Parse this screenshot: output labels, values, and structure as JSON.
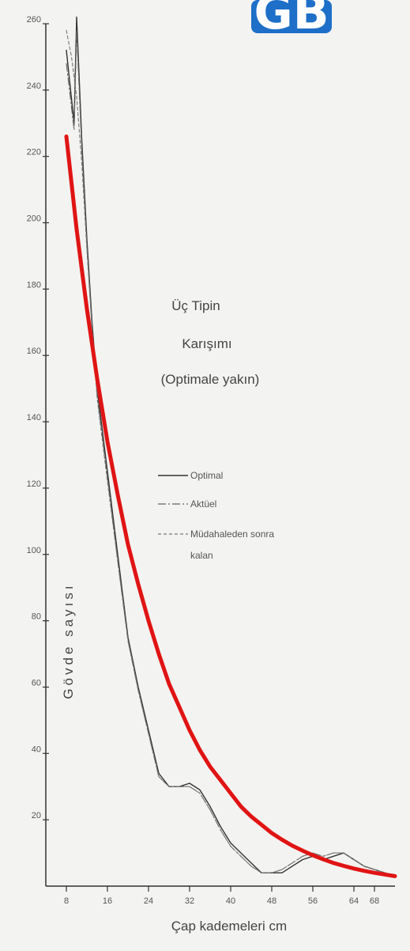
{
  "logo": {
    "text": "GB",
    "color": "#1d6fc7"
  },
  "chart_data": {
    "type": "line",
    "title_lines": [
      "Üç Tipin",
      "Karışımı",
      "(Optimale yakın)"
    ],
    "xlabel": "Çap kademeleri cm",
    "ylabel": "Gövde sayısı",
    "xlim": [
      4,
      72
    ],
    "ylim": [
      0,
      260
    ],
    "x_ticks": [
      "8",
      "16",
      "24",
      "32",
      "40",
      "48",
      "56",
      "64",
      "68"
    ],
    "y_ticks": [
      "260",
      "240",
      "220",
      "200",
      "180",
      "160",
      "140",
      "120",
      "100",
      "80",
      "60",
      "40",
      "20"
    ],
    "legend": {
      "placement": "right",
      "entries": [
        {
          "label": "Optimal",
          "style": "solid"
        },
        {
          "label": "Aktüel",
          "style": "dash-dot"
        },
        {
          "label": "Müdahaleden sonra",
          "style": "dashed"
        },
        {
          "label": "kalan",
          "style": "none"
        }
      ]
    },
    "series": [
      {
        "style": "solid",
        "color": "#333333",
        "x": [
          8,
          9.5,
          10,
          11,
          12,
          13,
          14,
          16,
          18,
          20,
          22,
          24,
          26,
          28,
          30,
          32,
          34,
          36,
          38,
          40,
          42,
          44,
          46,
          48,
          50,
          52,
          54,
          56,
          58,
          60,
          62,
          64,
          66,
          68,
          70,
          72
        ],
        "y": [
          252,
          230,
          262,
          225,
          195,
          170,
          150,
          125,
          100,
          75,
          60,
          47,
          34,
          30,
          30,
          31,
          29,
          24,
          18,
          13,
          10,
          7,
          4,
          4,
          4,
          6,
          8,
          9,
          8,
          9,
          10,
          8,
          6,
          5,
          4,
          3
        ]
      },
      {
        "style": "dash-dot",
        "color": "#666666",
        "x": [
          8,
          9.5,
          10,
          11,
          12,
          13,
          14,
          16,
          18,
          20,
          22,
          24,
          26,
          28,
          30,
          32,
          34,
          36,
          38,
          40,
          42,
          44,
          46,
          48,
          50,
          52,
          54,
          56,
          58,
          60,
          62,
          64,
          66,
          68,
          70,
          72
        ],
        "y": [
          248,
          228,
          258,
          222,
          193,
          168,
          148,
          123,
          98,
          74,
          59,
          46,
          33,
          30,
          30,
          30,
          28,
          23,
          17,
          12,
          9,
          6,
          4,
          4,
          5,
          7,
          9,
          10,
          9,
          10,
          10,
          8,
          6,
          5,
          4,
          3
        ]
      },
      {
        "style": "dashed",
        "color": "#777777",
        "x": [
          8,
          9,
          10,
          11,
          12,
          13,
          14,
          16,
          18,
          20,
          22,
          24,
          26,
          28,
          30,
          32,
          34,
          36,
          38,
          40,
          42,
          44,
          46,
          48,
          50,
          52,
          54,
          56,
          58,
          60,
          62,
          64,
          66,
          68,
          70,
          72
        ],
        "y": [
          258,
          250,
          238,
          218,
          192,
          168,
          147,
          122,
          98,
          74,
          59,
          46,
          33,
          30,
          30,
          30,
          28,
          23,
          17,
          12,
          9,
          6,
          4,
          4,
          5,
          7,
          9,
          10,
          9,
          10,
          10,
          8,
          6,
          5,
          4,
          3
        ]
      },
      {
        "style": "overlay",
        "color": "#e01414",
        "x": [
          8,
          10,
          12,
          14,
          16,
          18,
          20,
          22,
          24,
          26,
          28,
          30,
          32,
          34,
          36,
          38,
          40,
          42,
          44,
          46,
          48,
          50,
          52,
          54,
          56,
          58,
          60,
          62,
          64,
          66,
          68,
          70,
          72
        ],
        "y": [
          226,
          198,
          174,
          153,
          134,
          118,
          103,
          91,
          80,
          70,
          61,
          54,
          47,
          41,
          36,
          32,
          28,
          24,
          21,
          18.5,
          16,
          14,
          12.2,
          10.7,
          9.3,
          8.1,
          7,
          6.1,
          5.3,
          4.6,
          4,
          3.5,
          3
        ]
      }
    ]
  }
}
